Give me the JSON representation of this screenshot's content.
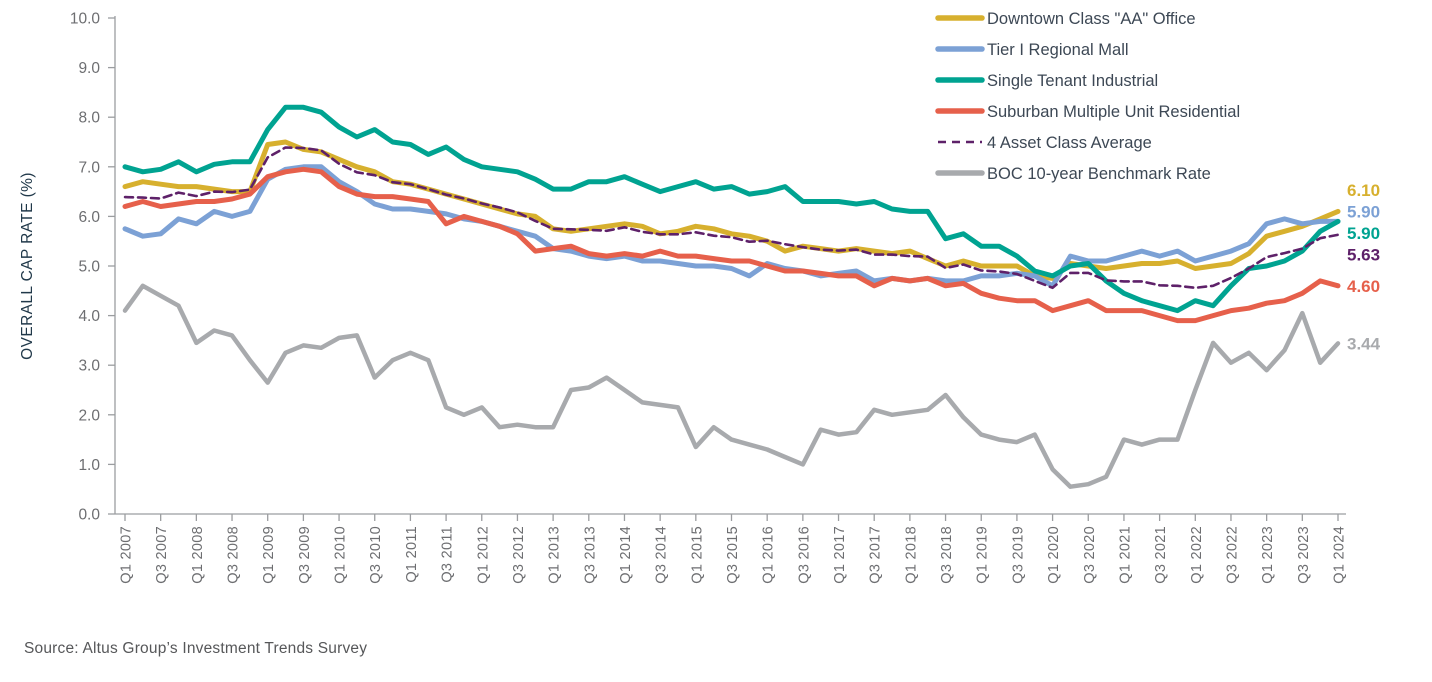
{
  "source": "Source:  Altus Group’s Investment Trends Survey",
  "y_axis_title": "OVERALL CAP RATE (%)",
  "colors": {
    "axis": "#9b9da0",
    "tick_text": "#6d6e71",
    "legend_text": "#3d4855",
    "axis_title_text": "#21394a",
    "source_text": "#565759"
  },
  "chart_data": {
    "type": "line",
    "title": "",
    "xlabel": "",
    "ylabel": "OVERALL CAP RATE (%)",
    "ylim": [
      0,
      10
    ],
    "grid": false,
    "legend_position": "top-right",
    "y_tick_labels": [
      "0.0",
      "1.0",
      "2.0",
      "3.0",
      "4.0",
      "5.0",
      "6.0",
      "7.0",
      "8.0",
      "9.0",
      "10.0"
    ],
    "x_tick_labels": [
      "Q1 2007",
      "Q3 2007",
      "Q1 2008",
      "Q3 2008",
      "Q1 2009",
      "Q3 2009",
      "Q1 2010",
      "Q3 2010",
      "Q1 2011",
      "Q3 2011",
      "Q1 2012",
      "Q3 2012",
      "Q1 2013",
      "Q3 2013",
      "Q1 2014",
      "Q3 2014",
      "Q1 2015",
      "Q3 2015",
      "Q1 2016",
      "Q3 2016",
      "Q1 2017",
      "Q3 2017",
      "Q1 2018",
      "Q3 2018",
      "Q1 2019",
      "Q3 2019",
      "Q1 2020",
      "Q3 2020",
      "Q1 2021",
      "Q3 2021",
      "Q1 2022",
      "Q3 2022",
      "Q1 2023",
      "Q3 2023",
      "Q1 2024"
    ],
    "categories": [
      "Q1 2007",
      "Q2 2007",
      "Q3 2007",
      "Q4 2007",
      "Q1 2008",
      "Q2 2008",
      "Q3 2008",
      "Q4 2008",
      "Q1 2009",
      "Q2 2009",
      "Q3 2009",
      "Q4 2009",
      "Q1 2010",
      "Q2 2010",
      "Q3 2010",
      "Q4 2010",
      "Q1 2011",
      "Q2 2011",
      "Q3 2011",
      "Q4 2011",
      "Q1 2012",
      "Q2 2012",
      "Q3 2012",
      "Q4 2012",
      "Q1 2013",
      "Q2 2013",
      "Q3 2013",
      "Q4 2013",
      "Q1 2014",
      "Q2 2014",
      "Q3 2014",
      "Q4 2014",
      "Q1 2015",
      "Q2 2015",
      "Q3 2015",
      "Q4 2015",
      "Q1 2016",
      "Q2 2016",
      "Q3 2016",
      "Q4 2016",
      "Q1 2017",
      "Q2 2017",
      "Q3 2017",
      "Q4 2017",
      "Q1 2018",
      "Q2 2018",
      "Q3 2018",
      "Q4 2018",
      "Q1 2019",
      "Q2 2019",
      "Q3 2019",
      "Q4 2019",
      "Q1 2020",
      "Q2 2020",
      "Q3 2020",
      "Q4 2020",
      "Q1 2021",
      "Q2 2021",
      "Q3 2021",
      "Q4 2021",
      "Q1 2022",
      "Q2 2022",
      "Q3 2022",
      "Q4 2022",
      "Q1 2023",
      "Q2 2023",
      "Q3 2023",
      "Q4 2023",
      "Q1 2024"
    ],
    "series": [
      {
        "id": "downtown-office",
        "name": "Downtown Class \"AA\" Office",
        "color": "#d7b02e",
        "dashed": false,
        "end_label": "6.10",
        "values": [
          6.6,
          6.7,
          6.65,
          6.6,
          6.6,
          6.55,
          6.5,
          6.5,
          7.45,
          7.5,
          7.35,
          7.3,
          7.15,
          7.0,
          6.9,
          6.7,
          6.65,
          6.55,
          6.45,
          6.35,
          6.25,
          6.15,
          6.05,
          6.0,
          5.75,
          5.7,
          5.75,
          5.8,
          5.85,
          5.8,
          5.65,
          5.7,
          5.8,
          5.75,
          5.65,
          5.6,
          5.5,
          5.3,
          5.4,
          5.35,
          5.3,
          5.35,
          5.3,
          5.25,
          5.3,
          5.15,
          5.0,
          5.1,
          5.0,
          5.0,
          5.0,
          4.8,
          4.75,
          5.05,
          5.0,
          4.95,
          5.0,
          5.05,
          5.05,
          5.1,
          4.95,
          5.0,
          5.05,
          5.25,
          5.6,
          5.7,
          5.8,
          5.95,
          6.1
        ]
      },
      {
        "id": "tier1-mall",
        "name": "Tier I Regional Mall",
        "color": "#7ca1d5",
        "dashed": false,
        "end_label": "5.90",
        "values": [
          5.75,
          5.6,
          5.65,
          5.95,
          5.85,
          6.1,
          6.0,
          6.1,
          6.75,
          6.95,
          7.0,
          7.0,
          6.7,
          6.5,
          6.25,
          6.15,
          6.15,
          6.1,
          6.05,
          5.95,
          5.9,
          5.8,
          5.7,
          5.6,
          5.35,
          5.3,
          5.2,
          5.15,
          5.2,
          5.1,
          5.1,
          5.05,
          5.0,
          5.0,
          4.95,
          4.8,
          5.05,
          4.95,
          4.9,
          4.8,
          4.85,
          4.9,
          4.7,
          4.75,
          4.7,
          4.75,
          4.7,
          4.7,
          4.8,
          4.8,
          4.85,
          4.8,
          4.6,
          5.2,
          5.1,
          5.1,
          5.2,
          5.3,
          5.2,
          5.3,
          5.1,
          5.2,
          5.3,
          5.45,
          5.85,
          5.95,
          5.85,
          5.9,
          5.9
        ]
      },
      {
        "id": "single-tenant-industrial",
        "name": "Single Tenant Industrial",
        "color": "#00a391",
        "dashed": false,
        "end_label": "5.90",
        "values": [
          7.0,
          6.9,
          6.95,
          7.1,
          6.9,
          7.05,
          7.1,
          7.1,
          7.75,
          8.2,
          8.2,
          8.1,
          7.8,
          7.6,
          7.75,
          7.5,
          7.45,
          7.25,
          7.4,
          7.15,
          7.0,
          6.95,
          6.9,
          6.75,
          6.55,
          6.55,
          6.7,
          6.7,
          6.8,
          6.65,
          6.5,
          6.6,
          6.7,
          6.55,
          6.6,
          6.45,
          6.5,
          6.6,
          6.3,
          6.3,
          6.3,
          6.25,
          6.3,
          6.15,
          6.1,
          6.1,
          5.55,
          5.65,
          5.4,
          5.4,
          5.2,
          4.9,
          4.8,
          5.0,
          5.05,
          4.7,
          4.45,
          4.3,
          4.2,
          4.1,
          4.3,
          4.2,
          4.6,
          4.95,
          5.0,
          5.1,
          5.3,
          5.7,
          5.9
        ]
      },
      {
        "id": "suburban-residential",
        "name": "Suburban Multiple Unit Residential",
        "color": "#e6604b",
        "dashed": false,
        "end_label": "4.60",
        "values": [
          6.2,
          6.3,
          6.2,
          6.25,
          6.3,
          6.3,
          6.35,
          6.45,
          6.8,
          6.9,
          6.95,
          6.9,
          6.6,
          6.45,
          6.4,
          6.4,
          6.35,
          6.3,
          5.85,
          6.0,
          5.9,
          5.8,
          5.65,
          5.3,
          5.35,
          5.4,
          5.25,
          5.2,
          5.25,
          5.2,
          5.3,
          5.2,
          5.2,
          5.15,
          5.1,
          5.1,
          5.0,
          4.9,
          4.9,
          4.85,
          4.8,
          4.8,
          4.6,
          4.75,
          4.7,
          4.75,
          4.6,
          4.65,
          4.45,
          4.35,
          4.3,
          4.3,
          4.1,
          4.2,
          4.3,
          4.1,
          4.1,
          4.1,
          4.0,
          3.9,
          3.9,
          4.0,
          4.1,
          4.15,
          4.25,
          4.3,
          4.45,
          4.7,
          4.6
        ]
      },
      {
        "id": "four-asset-average",
        "name": "4 Asset Class Average",
        "color": "#5e2169",
        "dashed": true,
        "end_label": "5.63",
        "values": [
          6.39,
          6.38,
          6.36,
          6.48,
          6.41,
          6.5,
          6.49,
          6.54,
          7.19,
          7.39,
          7.38,
          7.33,
          7.06,
          6.89,
          6.83,
          6.69,
          6.65,
          6.55,
          6.44,
          6.36,
          6.26,
          6.18,
          6.08,
          5.91,
          5.75,
          5.74,
          5.73,
          5.71,
          5.78,
          5.69,
          5.64,
          5.64,
          5.68,
          5.61,
          5.58,
          5.49,
          5.51,
          5.44,
          5.38,
          5.33,
          5.31,
          5.33,
          5.23,
          5.23,
          5.2,
          5.19,
          4.96,
          5.03,
          4.91,
          4.89,
          4.84,
          4.7,
          4.56,
          4.86,
          4.86,
          4.71,
          4.69,
          4.69,
          4.61,
          4.6,
          4.56,
          4.6,
          4.76,
          4.95,
          5.18,
          5.26,
          5.35,
          5.56,
          5.63
        ]
      },
      {
        "id": "boc-benchmark",
        "name": "BOC 10-year Benchmark Rate",
        "color": "#a8aaad",
        "dashed": false,
        "end_label": "3.44",
        "values": [
          4.1,
          4.6,
          4.4,
          4.2,
          3.45,
          3.7,
          3.6,
          3.1,
          2.65,
          3.25,
          3.4,
          3.35,
          3.55,
          3.6,
          2.75,
          3.1,
          3.25,
          3.1,
          2.15,
          2.0,
          2.15,
          1.75,
          1.8,
          1.75,
          1.75,
          2.5,
          2.55,
          2.75,
          2.5,
          2.25,
          2.2,
          2.15,
          1.35,
          1.75,
          1.5,
          1.4,
          1.3,
          1.15,
          1.0,
          1.7,
          1.6,
          1.65,
          2.1,
          2.0,
          2.05,
          2.1,
          2.4,
          1.95,
          1.6,
          1.5,
          1.45,
          1.6,
          0.9,
          0.55,
          0.6,
          0.75,
          1.5,
          1.4,
          1.5,
          1.5,
          2.5,
          3.45,
          3.05,
          3.25,
          2.9,
          3.3,
          4.05,
          3.05,
          3.44
        ]
      }
    ]
  }
}
